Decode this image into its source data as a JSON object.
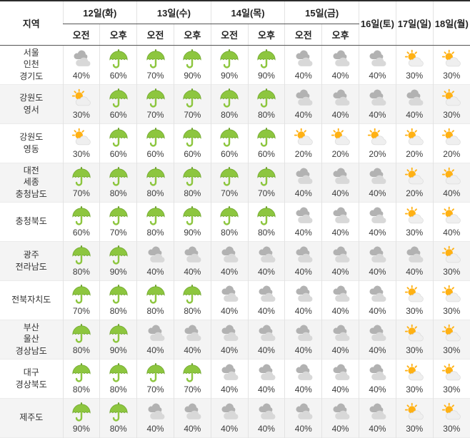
{
  "header": {
    "region_label": "지역",
    "am_label": "오전",
    "pm_label": "오후",
    "days": [
      {
        "label": "12일(화)"
      },
      {
        "label": "13일(수)"
      },
      {
        "label": "14일(목)"
      },
      {
        "label": "15일(금)"
      },
      {
        "label": "16일(토)"
      },
      {
        "label": "17일(일)"
      },
      {
        "label": "18일(월)"
      }
    ]
  },
  "icons": {
    "umbrella": "green-umbrella-rain-icon",
    "cloudy": "gray-clouds-icon",
    "partly": "sun-behind-cloud-icon"
  },
  "colors": {
    "umbrella_green": "#8dc63f",
    "umbrella_stroke": "#6fa52e",
    "cloud_dark": "#b2b2b2",
    "cloud_light": "#d8d8d8",
    "sun_orange": "#ffb114",
    "alt_row_bg": "#f4f4f4",
    "header_line": "#555555",
    "grid_line": "#e3e3e3"
  },
  "rows": [
    {
      "region": [
        "서울",
        "인천",
        "경기도"
      ],
      "cells": [
        {
          "icon": "cloudy",
          "pct": "40%"
        },
        {
          "icon": "umbrella",
          "pct": "60%"
        },
        {
          "icon": "umbrella",
          "pct": "70%"
        },
        {
          "icon": "umbrella",
          "pct": "90%"
        },
        {
          "icon": "umbrella",
          "pct": "90%"
        },
        {
          "icon": "umbrella",
          "pct": "90%"
        },
        {
          "icon": "cloudy",
          "pct": "40%"
        },
        {
          "icon": "cloudy",
          "pct": "40%"
        },
        {
          "icon": "cloudy",
          "pct": "40%"
        },
        {
          "icon": "partly",
          "pct": "30%"
        },
        {
          "icon": "partly",
          "pct": "30%"
        }
      ]
    },
    {
      "region": [
        "강원도",
        "영서"
      ],
      "cells": [
        {
          "icon": "partly",
          "pct": "30%"
        },
        {
          "icon": "umbrella",
          "pct": "60%"
        },
        {
          "icon": "umbrella",
          "pct": "70%"
        },
        {
          "icon": "umbrella",
          "pct": "70%"
        },
        {
          "icon": "umbrella",
          "pct": "80%"
        },
        {
          "icon": "umbrella",
          "pct": "80%"
        },
        {
          "icon": "cloudy",
          "pct": "40%"
        },
        {
          "icon": "cloudy",
          "pct": "40%"
        },
        {
          "icon": "cloudy",
          "pct": "40%"
        },
        {
          "icon": "cloudy",
          "pct": "40%"
        },
        {
          "icon": "partly",
          "pct": "30%"
        }
      ]
    },
    {
      "region": [
        "강원도",
        "영동"
      ],
      "cells": [
        {
          "icon": "partly",
          "pct": "30%"
        },
        {
          "icon": "umbrella",
          "pct": "60%"
        },
        {
          "icon": "umbrella",
          "pct": "60%"
        },
        {
          "icon": "umbrella",
          "pct": "60%"
        },
        {
          "icon": "umbrella",
          "pct": "60%"
        },
        {
          "icon": "umbrella",
          "pct": "60%"
        },
        {
          "icon": "partly",
          "pct": "20%"
        },
        {
          "icon": "partly",
          "pct": "20%"
        },
        {
          "icon": "partly",
          "pct": "20%"
        },
        {
          "icon": "partly",
          "pct": "20%"
        },
        {
          "icon": "partly",
          "pct": "20%"
        }
      ]
    },
    {
      "region": [
        "대전",
        "세종",
        "충청남도"
      ],
      "cells": [
        {
          "icon": "umbrella",
          "pct": "70%"
        },
        {
          "icon": "umbrella",
          "pct": "80%"
        },
        {
          "icon": "umbrella",
          "pct": "80%"
        },
        {
          "icon": "umbrella",
          "pct": "80%"
        },
        {
          "icon": "umbrella",
          "pct": "70%"
        },
        {
          "icon": "umbrella",
          "pct": "70%"
        },
        {
          "icon": "cloudy",
          "pct": "40%"
        },
        {
          "icon": "cloudy",
          "pct": "40%"
        },
        {
          "icon": "cloudy",
          "pct": "40%"
        },
        {
          "icon": "partly",
          "pct": "20%"
        },
        {
          "icon": "partly",
          "pct": "40%"
        }
      ]
    },
    {
      "region": [
        "충청북도"
      ],
      "cells": [
        {
          "icon": "umbrella",
          "pct": "60%"
        },
        {
          "icon": "umbrella",
          "pct": "70%"
        },
        {
          "icon": "umbrella",
          "pct": "80%"
        },
        {
          "icon": "umbrella",
          "pct": "90%"
        },
        {
          "icon": "umbrella",
          "pct": "80%"
        },
        {
          "icon": "umbrella",
          "pct": "80%"
        },
        {
          "icon": "cloudy",
          "pct": "40%"
        },
        {
          "icon": "cloudy",
          "pct": "40%"
        },
        {
          "icon": "cloudy",
          "pct": "40%"
        },
        {
          "icon": "partly",
          "pct": "30%"
        },
        {
          "icon": "partly",
          "pct": "40%"
        }
      ]
    },
    {
      "region": [
        "광주",
        "전라남도"
      ],
      "cells": [
        {
          "icon": "umbrella",
          "pct": "80%"
        },
        {
          "icon": "umbrella",
          "pct": "90%"
        },
        {
          "icon": "cloudy",
          "pct": "40%"
        },
        {
          "icon": "cloudy",
          "pct": "40%"
        },
        {
          "icon": "cloudy",
          "pct": "40%"
        },
        {
          "icon": "cloudy",
          "pct": "40%"
        },
        {
          "icon": "cloudy",
          "pct": "40%"
        },
        {
          "icon": "cloudy",
          "pct": "40%"
        },
        {
          "icon": "cloudy",
          "pct": "40%"
        },
        {
          "icon": "cloudy",
          "pct": "40%"
        },
        {
          "icon": "partly",
          "pct": "30%"
        }
      ]
    },
    {
      "region": [
        "전북자치도"
      ],
      "cells": [
        {
          "icon": "umbrella",
          "pct": "70%"
        },
        {
          "icon": "umbrella",
          "pct": "80%"
        },
        {
          "icon": "umbrella",
          "pct": "80%"
        },
        {
          "icon": "umbrella",
          "pct": "80%"
        },
        {
          "icon": "cloudy",
          "pct": "40%"
        },
        {
          "icon": "cloudy",
          "pct": "40%"
        },
        {
          "icon": "cloudy",
          "pct": "40%"
        },
        {
          "icon": "cloudy",
          "pct": "40%"
        },
        {
          "icon": "cloudy",
          "pct": "40%"
        },
        {
          "icon": "partly",
          "pct": "30%"
        },
        {
          "icon": "partly",
          "pct": "30%"
        }
      ]
    },
    {
      "region": [
        "부산",
        "울산",
        "경상남도"
      ],
      "cells": [
        {
          "icon": "umbrella",
          "pct": "80%"
        },
        {
          "icon": "umbrella",
          "pct": "90%"
        },
        {
          "icon": "cloudy",
          "pct": "40%"
        },
        {
          "icon": "cloudy",
          "pct": "40%"
        },
        {
          "icon": "cloudy",
          "pct": "40%"
        },
        {
          "icon": "cloudy",
          "pct": "40%"
        },
        {
          "icon": "cloudy",
          "pct": "40%"
        },
        {
          "icon": "cloudy",
          "pct": "40%"
        },
        {
          "icon": "cloudy",
          "pct": "40%"
        },
        {
          "icon": "partly",
          "pct": "30%"
        },
        {
          "icon": "partly",
          "pct": "30%"
        }
      ]
    },
    {
      "region": [
        "대구",
        "경상북도"
      ],
      "cells": [
        {
          "icon": "umbrella",
          "pct": "80%"
        },
        {
          "icon": "umbrella",
          "pct": "80%"
        },
        {
          "icon": "umbrella",
          "pct": "70%"
        },
        {
          "icon": "umbrella",
          "pct": "70%"
        },
        {
          "icon": "cloudy",
          "pct": "40%"
        },
        {
          "icon": "cloudy",
          "pct": "40%"
        },
        {
          "icon": "cloudy",
          "pct": "40%"
        },
        {
          "icon": "cloudy",
          "pct": "40%"
        },
        {
          "icon": "cloudy",
          "pct": "40%"
        },
        {
          "icon": "partly",
          "pct": "30%"
        },
        {
          "icon": "partly",
          "pct": "30%"
        }
      ]
    },
    {
      "region": [
        "제주도"
      ],
      "cells": [
        {
          "icon": "umbrella",
          "pct": "90%"
        },
        {
          "icon": "umbrella",
          "pct": "80%"
        },
        {
          "icon": "cloudy",
          "pct": "40%"
        },
        {
          "icon": "cloudy",
          "pct": "40%"
        },
        {
          "icon": "cloudy",
          "pct": "40%"
        },
        {
          "icon": "cloudy",
          "pct": "40%"
        },
        {
          "icon": "cloudy",
          "pct": "40%"
        },
        {
          "icon": "cloudy",
          "pct": "40%"
        },
        {
          "icon": "cloudy",
          "pct": "40%"
        },
        {
          "icon": "partly",
          "pct": "30%"
        },
        {
          "icon": "partly",
          "pct": "30%"
        }
      ]
    }
  ]
}
